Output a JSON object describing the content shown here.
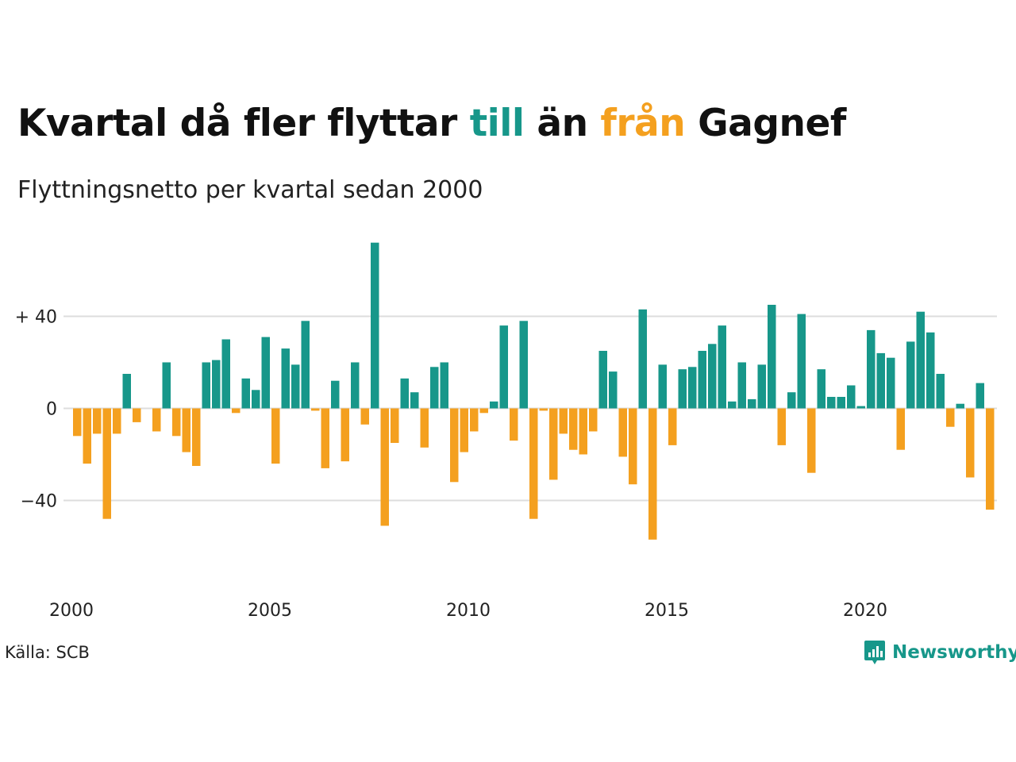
{
  "header": {
    "title_part1": "Kvartal då fler flyttar ",
    "title_till": "till",
    "title_part2": " än ",
    "title_fran": "från",
    "title_part3": " Gagnef",
    "subtitle": "Flyttningsnetto per kvartal sedan 2000"
  },
  "footer": {
    "source": "Källa: SCB",
    "brand": "Newsworthy",
    "brand_icon": "newsworthy-logo-icon"
  },
  "colors": {
    "positive": "#17978a",
    "negative": "#f4a01f",
    "grid": "#dddddd",
    "text": "#222222"
  },
  "chart_data": {
    "type": "bar",
    "title": "Kvartal då fler flyttar till än från Gagnef",
    "subtitle": "Flyttningsnetto per kvartal sedan 2000",
    "x_start": "2000 Q1",
    "x_ticks": [
      "2000",
      "2005",
      "2010",
      "2015",
      "2020"
    ],
    "y_ticks": [
      {
        "value": 40,
        "label": "+ 40"
      },
      {
        "value": 0,
        "label": "0"
      },
      {
        "value": -40,
        "label": "−40"
      }
    ],
    "ylim": [
      -62,
      74
    ],
    "grid": true,
    "values": [
      -12,
      -24,
      -11,
      -48,
      -11,
      15,
      -6,
      0,
      -10,
      20,
      -12,
      -19,
      -25,
      20,
      21,
      30,
      -2,
      13,
      8,
      31,
      -24,
      26,
      19,
      38,
      -1,
      -26,
      12,
      -23,
      20,
      -7,
      72,
      -51,
      -15,
      13,
      7,
      -17,
      18,
      20,
      -32,
      -19,
      -10,
      -2,
      3,
      36,
      -14,
      38,
      -48,
      -1,
      -31,
      -11,
      -18,
      -20,
      -10,
      25,
      16,
      -21,
      -33,
      43,
      -57,
      19,
      -16,
      17,
      18,
      25,
      28,
      36,
      3,
      20,
      4,
      19,
      45,
      -16,
      7,
      41,
      -28,
      17,
      5,
      5,
      10,
      1,
      34,
      24,
      22,
      -18,
      29,
      42,
      33,
      15,
      -8,
      2,
      -30,
      11,
      -44
    ]
  }
}
